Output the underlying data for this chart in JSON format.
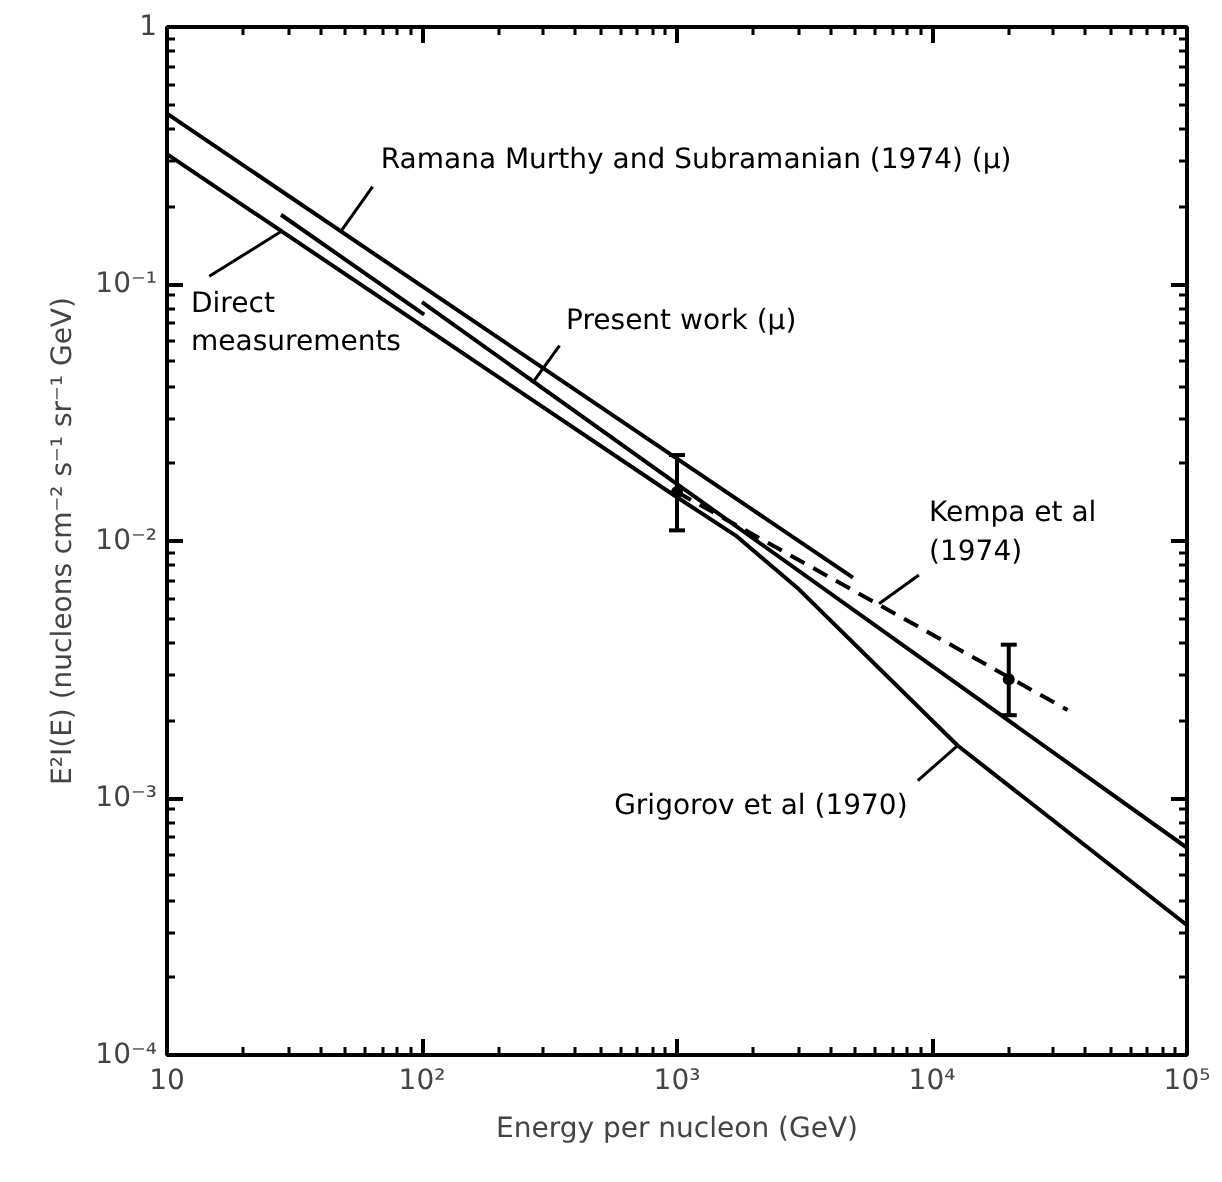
{
  "chart_data": {
    "type": "line",
    "xlabel": "Energy per nucleon (GeV)",
    "ylabel": "E²I(E) (nucleons cm⁻² s⁻¹ sr⁻¹ GeV)",
    "log": "xy",
    "xlim": [
      10,
      100000
    ],
    "ylim": [
      0.0001,
      1
    ],
    "xticks": [
      {
        "value": 10,
        "label": "10"
      },
      {
        "value": 100,
        "label": "10²"
      },
      {
        "value": 1000,
        "label": "10³"
      },
      {
        "value": 10000,
        "label": "10⁴"
      },
      {
        "value": 100000,
        "label": "10⁵"
      }
    ],
    "yticks": [
      {
        "value": 0.0001,
        "label": "10⁻⁴"
      },
      {
        "value": 0.001,
        "label": "10⁻³"
      },
      {
        "value": 0.01,
        "label": "10⁻²"
      },
      {
        "value": 0.1,
        "label": "10⁻¹"
      },
      {
        "value": 1,
        "label": "1"
      }
    ],
    "series": [
      {
        "color": "#000000",
        "line_style": "solid",
        "x": [
          10,
          4900
        ],
        "values": [
          0.46,
          0.0072
        ]
      },
      {
        "color": "#000000",
        "line_style": "solid",
        "x": [
          100,
          100000
        ],
        "values": [
          0.085,
          0.00064
        ]
      },
      {
        "color": "#000000",
        "line_style": "solid",
        "x": [
          10,
          1000,
          1700,
          3000,
          12600,
          100000
        ],
        "values": [
          0.32,
          0.0148,
          0.0105,
          0.0065,
          0.0016,
          0.00032
        ]
      },
      {
        "color": "#000000",
        "line_style": "solid",
        "x": [
          28,
          102
        ],
        "values": [
          0.186,
          0.076
        ]
      },
      {
        "color": "#000000",
        "line_style": "dashed",
        "x": [
          1000,
          34000
        ],
        "values": [
          0.0155,
          0.0022
        ]
      },
      {
        "type": "scatter",
        "marker": "circle",
        "color": "#000000",
        "x": [
          1000,
          20000
        ],
        "values": [
          0.0155,
          0.0029
        ],
        "errors": [
          [
            0.011,
            0.0216
          ],
          [
            0.0021,
            0.00395
          ]
        ]
      }
    ],
    "annotations": [
      {
        "text": "Ramana Murthy and Subramanian (1974) (μ)",
        "x": 48,
        "y": 0.16
      },
      {
        "text": "Direct\nmeasurements",
        "x": 28,
        "y": 0.16
      },
      {
        "text": "Present work (μ)",
        "x": 275,
        "y": 0.042
      },
      {
        "text": "Kempa et al\n(1974)",
        "x": 6200,
        "y": 0.0057
      },
      {
        "text": "Grigorov et al (1970)",
        "x": 12600,
        "y": 0.0016
      }
    ]
  }
}
